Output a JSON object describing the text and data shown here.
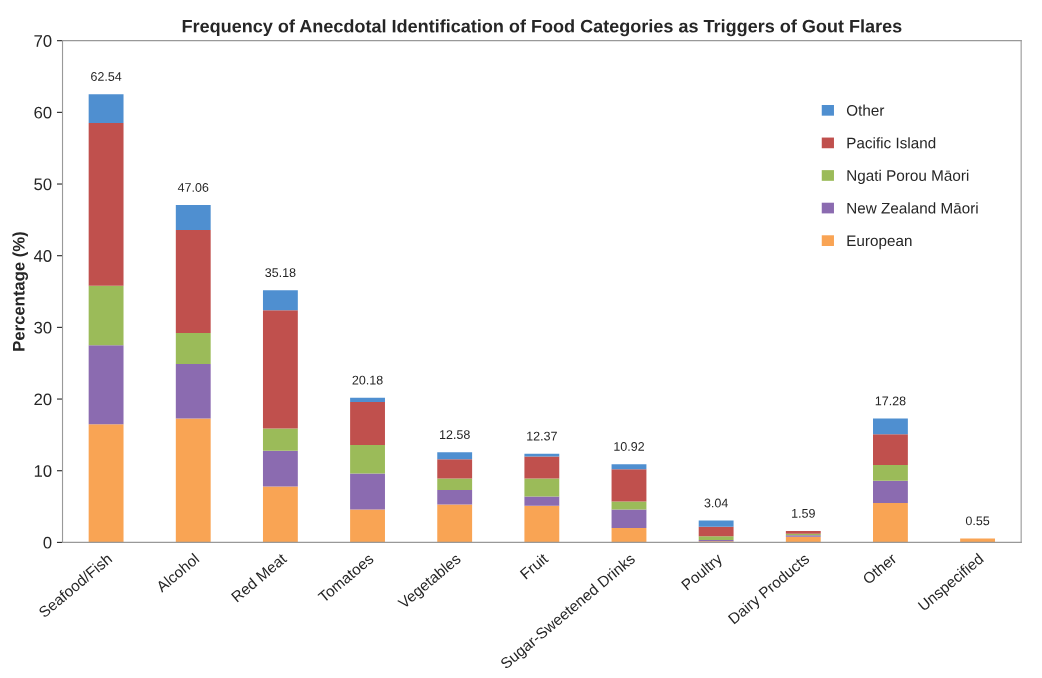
{
  "chart_data": {
    "type": "bar",
    "stacked": true,
    "title": "Frequency of Anecdotal Identification of Food Categories as Triggers of Gout Flares",
    "ylabel": "Percentage (%)",
    "categories": [
      "Seafood/Fish",
      "Alcohol",
      "Red Meat",
      "Tomatoes",
      "Vegetables",
      "Fruit",
      "Sugar-Sweetened Drinks",
      "Poultry",
      "Dairy Products",
      "Other",
      "Unspecified"
    ],
    "series": [
      {
        "name": "European",
        "color": "#f9a454",
        "values": [
          16.5,
          17.3,
          7.8,
          4.6,
          5.3,
          5.1,
          2.0,
          0.15,
          0.8,
          5.5,
          0.55
        ]
      },
      {
        "name": "New Zealand Māori",
        "color": "#8b6bb0",
        "values": [
          11.0,
          7.6,
          5.0,
          5.0,
          2.0,
          1.3,
          2.6,
          0.2,
          0.2,
          3.1,
          null
        ]
      },
      {
        "name": "Ngati Porou Māori",
        "color": "#9bbb59",
        "values": [
          8.3,
          4.3,
          3.1,
          4.0,
          1.6,
          2.5,
          1.1,
          0.5,
          0.2,
          2.2,
          null
        ]
      },
      {
        "name": "Pacific Island",
        "color": "#c0504d",
        "values": [
          22.7,
          14.4,
          16.5,
          6.0,
          2.7,
          3.1,
          4.5,
          1.35,
          0.39,
          4.3,
          null
        ]
      },
      {
        "name": "Other",
        "color": "#4f8fd0",
        "values": [
          4.04,
          3.46,
          2.78,
          0.58,
          0.98,
          0.37,
          0.72,
          0.84,
          null,
          2.18,
          null
        ]
      }
    ],
    "totals": [
      "62.54",
      "47.06",
      "35.18",
      "20.18",
      "12.58",
      "12.37",
      "10.92",
      "3.04",
      "1.59",
      "17.28",
      "0.55"
    ],
    "ylim": [
      0,
      70
    ],
    "yticks": [
      0,
      10,
      20,
      30,
      40,
      50,
      60,
      70
    ],
    "grid": false,
    "legend": "top right"
  }
}
